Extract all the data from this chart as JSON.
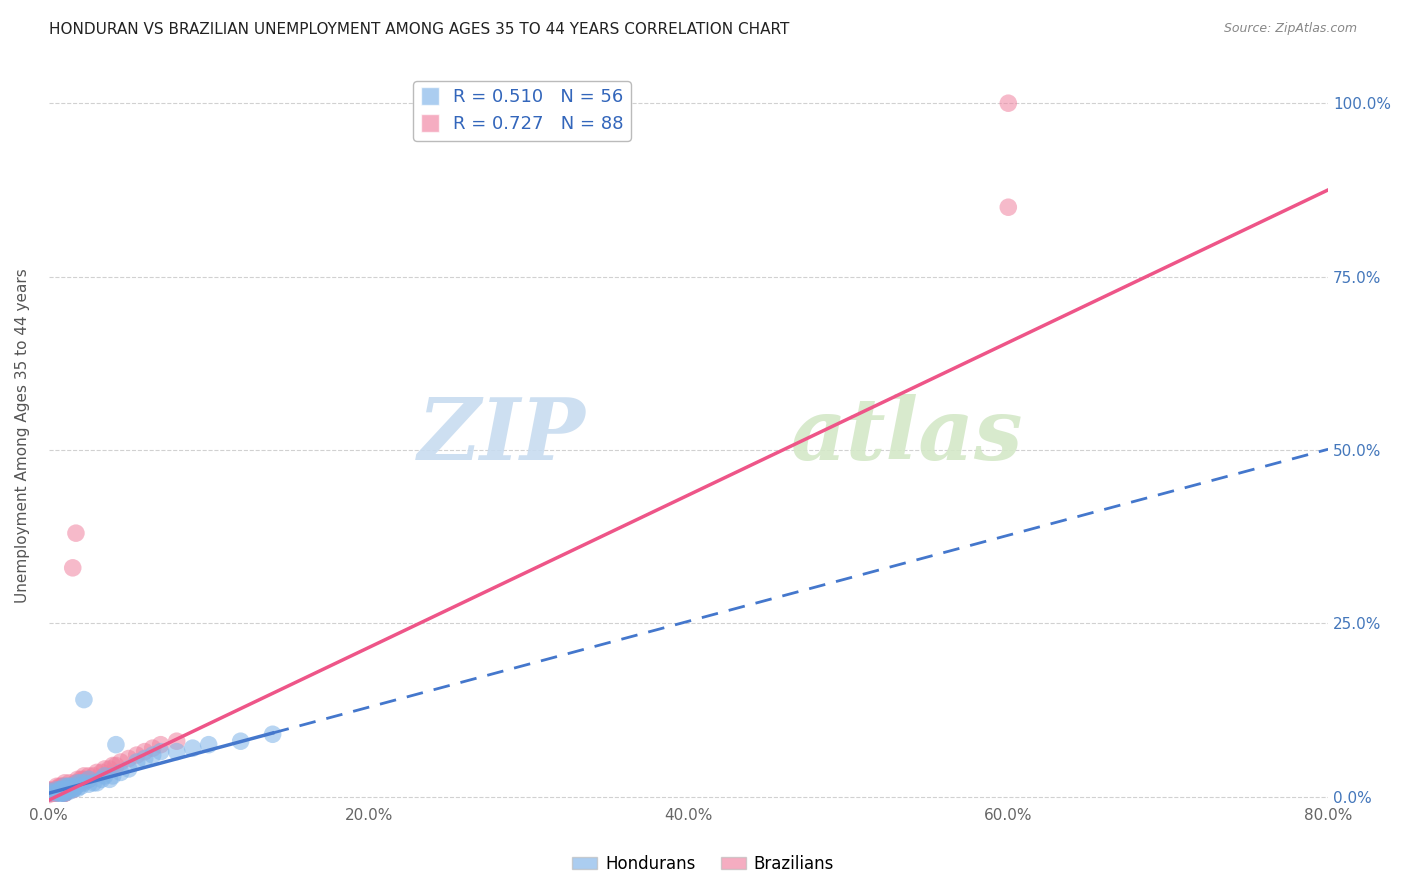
{
  "title": "HONDURAN VS BRAZILIAN UNEMPLOYMENT AMONG AGES 35 TO 44 YEARS CORRELATION CHART",
  "source": "Source: ZipAtlas.com",
  "xlabel_ticks": [
    "0.0%",
    "20.0%",
    "40.0%",
    "60.0%",
    "80.0%"
  ],
  "xlabel_vals": [
    0.0,
    0.2,
    0.4,
    0.6,
    0.8
  ],
  "ylabel_vals": [
    0.0,
    0.25,
    0.5,
    0.75,
    1.0
  ],
  "ylabel_label": "Unemployment Among Ages 35 to 44 years",
  "honduran_R": 0.51,
  "honduran_N": 56,
  "brazilian_R": 0.727,
  "brazilian_N": 88,
  "honduran_color": "#7EB3E8",
  "brazilian_color": "#F082A0",
  "honduran_line_color": "#4477CC",
  "brazilian_line_color": "#EE5588",
  "xmin": 0.0,
  "xmax": 0.8,
  "ymin": -0.01,
  "ymax": 1.05,
  "honduran_x": [
    0.0,
    0.0,
    0.005,
    0.005,
    0.005,
    0.007,
    0.007,
    0.007,
    0.007,
    0.008,
    0.008,
    0.008,
    0.009,
    0.009,
    0.009,
    0.01,
    0.01,
    0.01,
    0.01,
    0.01,
    0.012,
    0.012,
    0.012,
    0.013,
    0.013,
    0.014,
    0.015,
    0.015,
    0.016,
    0.017,
    0.018,
    0.018,
    0.02,
    0.02,
    0.022,
    0.022,
    0.025,
    0.025,
    0.028,
    0.03,
    0.033,
    0.035,
    0.038,
    0.04,
    0.042,
    0.045,
    0.05,
    0.055,
    0.06,
    0.065,
    0.07,
    0.08,
    0.09,
    0.1,
    0.12,
    0.14
  ],
  "honduran_y": [
    0.005,
    0.008,
    0.005,
    0.007,
    0.01,
    0.005,
    0.007,
    0.008,
    0.01,
    0.005,
    0.007,
    0.01,
    0.005,
    0.007,
    0.01,
    0.005,
    0.007,
    0.01,
    0.012,
    0.015,
    0.007,
    0.01,
    0.015,
    0.01,
    0.015,
    0.012,
    0.01,
    0.015,
    0.012,
    0.015,
    0.012,
    0.02,
    0.015,
    0.02,
    0.02,
    0.14,
    0.018,
    0.025,
    0.02,
    0.02,
    0.025,
    0.03,
    0.025,
    0.03,
    0.075,
    0.035,
    0.04,
    0.05,
    0.055,
    0.06,
    0.065,
    0.065,
    0.07,
    0.075,
    0.08,
    0.09
  ],
  "brazilian_x": [
    0.0,
    0.0,
    0.0,
    0.0,
    0.0,
    0.0,
    0.0,
    0.0,
    0.0,
    0.0,
    0.0,
    0.0,
    0.0,
    0.0,
    0.0,
    0.0,
    0.0,
    0.0,
    0.0,
    0.0,
    0.003,
    0.003,
    0.004,
    0.004,
    0.005,
    0.005,
    0.005,
    0.005,
    0.005,
    0.006,
    0.006,
    0.007,
    0.007,
    0.007,
    0.007,
    0.008,
    0.008,
    0.008,
    0.008,
    0.009,
    0.009,
    0.009,
    0.01,
    0.01,
    0.01,
    0.01,
    0.01,
    0.01,
    0.01,
    0.01,
    0.01,
    0.01,
    0.01,
    0.012,
    0.012,
    0.013,
    0.013,
    0.014,
    0.015,
    0.015,
    0.015,
    0.017,
    0.017,
    0.018,
    0.018,
    0.02,
    0.02,
    0.022,
    0.022,
    0.022,
    0.025,
    0.025,
    0.028,
    0.03,
    0.033,
    0.035,
    0.038,
    0.04,
    0.042,
    0.045,
    0.05,
    0.055,
    0.06,
    0.065,
    0.07,
    0.08,
    0.6,
    0.6
  ],
  "brazilian_y": [
    0.003,
    0.005,
    0.005,
    0.005,
    0.005,
    0.005,
    0.005,
    0.005,
    0.005,
    0.007,
    0.007,
    0.007,
    0.007,
    0.007,
    0.007,
    0.007,
    0.008,
    0.008,
    0.008,
    0.01,
    0.005,
    0.008,
    0.005,
    0.008,
    0.005,
    0.007,
    0.01,
    0.012,
    0.015,
    0.007,
    0.01,
    0.007,
    0.01,
    0.012,
    0.015,
    0.007,
    0.01,
    0.012,
    0.015,
    0.008,
    0.01,
    0.015,
    0.005,
    0.005,
    0.005,
    0.007,
    0.007,
    0.01,
    0.01,
    0.012,
    0.012,
    0.015,
    0.02,
    0.01,
    0.015,
    0.012,
    0.02,
    0.012,
    0.01,
    0.015,
    0.33,
    0.02,
    0.38,
    0.02,
    0.025,
    0.02,
    0.025,
    0.025,
    0.025,
    0.03,
    0.025,
    0.03,
    0.03,
    0.035,
    0.035,
    0.04,
    0.04,
    0.045,
    0.045,
    0.05,
    0.055,
    0.06,
    0.065,
    0.07,
    0.075,
    0.08,
    0.85,
    1.0
  ],
  "honduran_line_slope": 0.62,
  "honduran_line_intercept": 0.005,
  "honduran_line_x_solid_end": 0.14,
  "honduran_line_x_dash_end": 0.8,
  "brazilian_line_slope": 1.1,
  "brazilian_line_intercept": -0.005
}
